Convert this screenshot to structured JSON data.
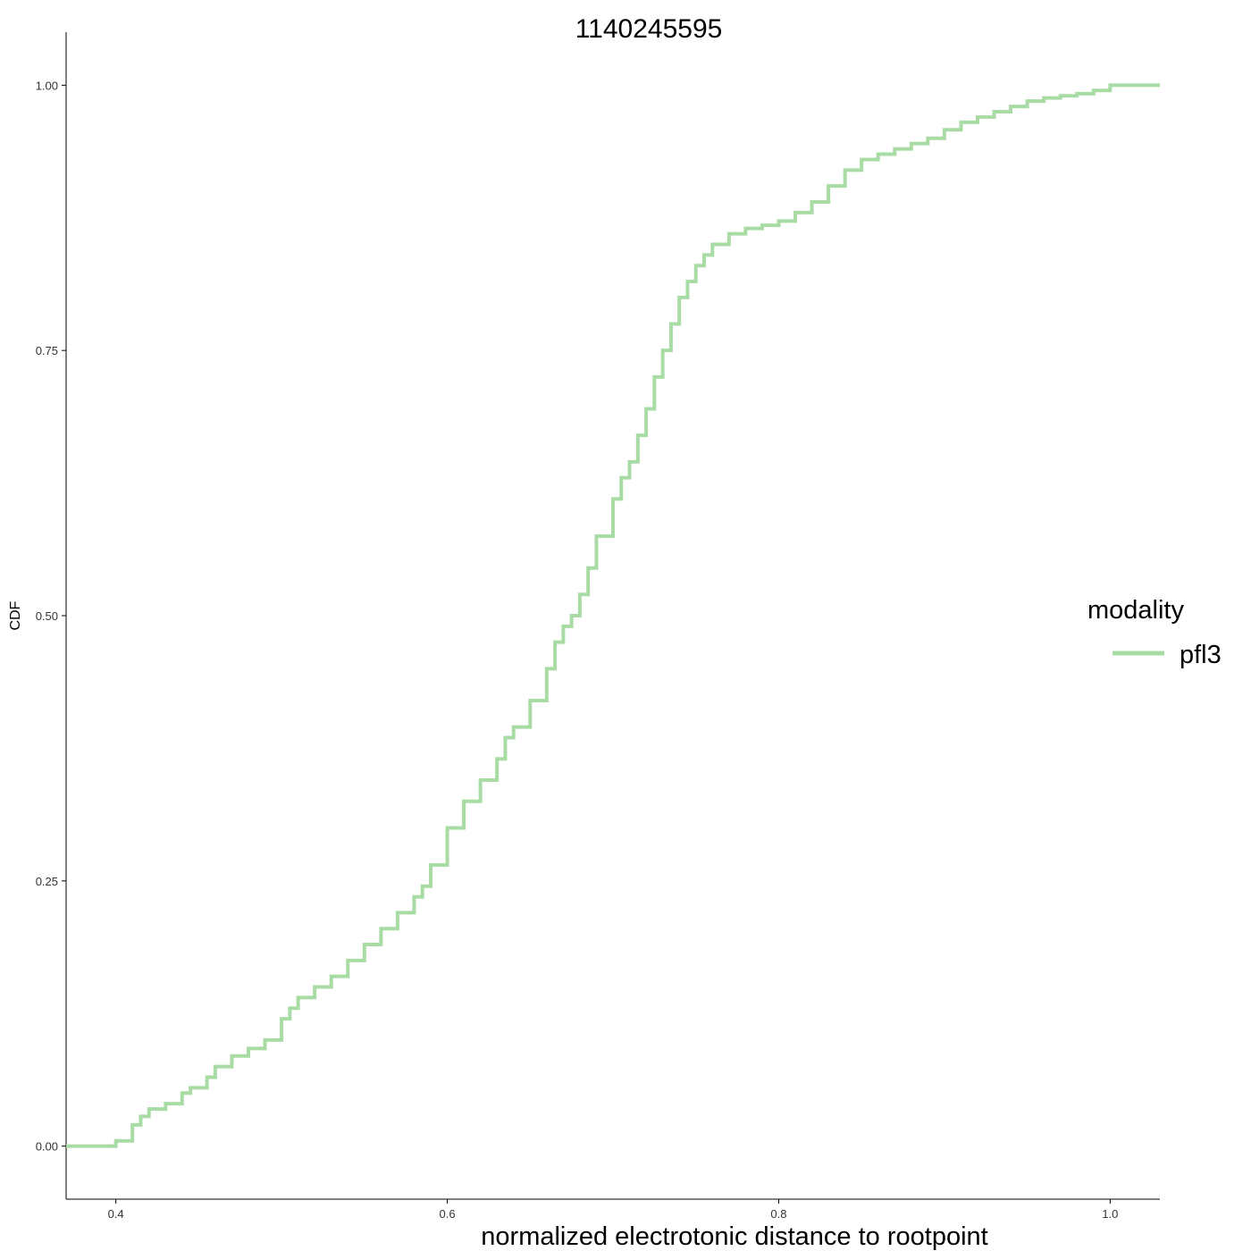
{
  "chart_data": {
    "type": "line",
    "step": true,
    "title": "1140245595",
    "xlabel": "normalized electrotonic distance to rootpoint",
    "ylabel": "CDF",
    "xlim": [
      0.37,
      1.03
    ],
    "ylim": [
      -0.05,
      1.05
    ],
    "xticks": [
      0.4,
      0.6,
      0.8,
      1.0
    ],
    "xtick_labels": [
      "0.4",
      "0.6",
      "0.8",
      "1.0"
    ],
    "yticks": [
      0.0,
      0.25,
      0.5,
      0.75,
      1.0
    ],
    "ytick_labels": [
      "0.00",
      "0.25",
      "0.50",
      "0.75",
      "1.00"
    ],
    "grid": false,
    "legend": {
      "title": "modality",
      "position": "right",
      "entries": [
        {
          "label": "pfl3",
          "color": "#a8dca4"
        }
      ]
    },
    "series": [
      {
        "name": "pfl3",
        "color": "#a8dca4",
        "x": [
          0.37,
          0.4,
          0.41,
          0.415,
          0.42,
          0.43,
          0.44,
          0.445,
          0.455,
          0.46,
          0.47,
          0.48,
          0.49,
          0.5,
          0.505,
          0.51,
          0.52,
          0.53,
          0.54,
          0.55,
          0.56,
          0.57,
          0.58,
          0.585,
          0.59,
          0.6,
          0.61,
          0.62,
          0.63,
          0.635,
          0.64,
          0.65,
          0.66,
          0.665,
          0.67,
          0.675,
          0.68,
          0.685,
          0.69,
          0.7,
          0.705,
          0.71,
          0.715,
          0.72,
          0.725,
          0.73,
          0.735,
          0.74,
          0.745,
          0.75,
          0.755,
          0.76,
          0.77,
          0.78,
          0.79,
          0.8,
          0.81,
          0.82,
          0.83,
          0.84,
          0.85,
          0.86,
          0.87,
          0.88,
          0.89,
          0.9,
          0.91,
          0.92,
          0.93,
          0.94,
          0.95,
          0.96,
          0.97,
          0.98,
          0.99,
          1.0,
          1.03
        ],
        "y": [
          0.0,
          0.005,
          0.02,
          0.028,
          0.035,
          0.04,
          0.05,
          0.055,
          0.065,
          0.075,
          0.085,
          0.092,
          0.1,
          0.12,
          0.13,
          0.14,
          0.15,
          0.16,
          0.175,
          0.19,
          0.205,
          0.22,
          0.235,
          0.245,
          0.265,
          0.3,
          0.325,
          0.345,
          0.365,
          0.385,
          0.395,
          0.42,
          0.45,
          0.475,
          0.49,
          0.5,
          0.52,
          0.545,
          0.575,
          0.61,
          0.63,
          0.645,
          0.67,
          0.695,
          0.725,
          0.75,
          0.775,
          0.8,
          0.815,
          0.83,
          0.84,
          0.85,
          0.86,
          0.865,
          0.868,
          0.872,
          0.88,
          0.89,
          0.905,
          0.92,
          0.93,
          0.935,
          0.94,
          0.945,
          0.95,
          0.958,
          0.965,
          0.97,
          0.975,
          0.98,
          0.985,
          0.988,
          0.99,
          0.992,
          0.995,
          1.0,
          1.0
        ]
      }
    ]
  }
}
